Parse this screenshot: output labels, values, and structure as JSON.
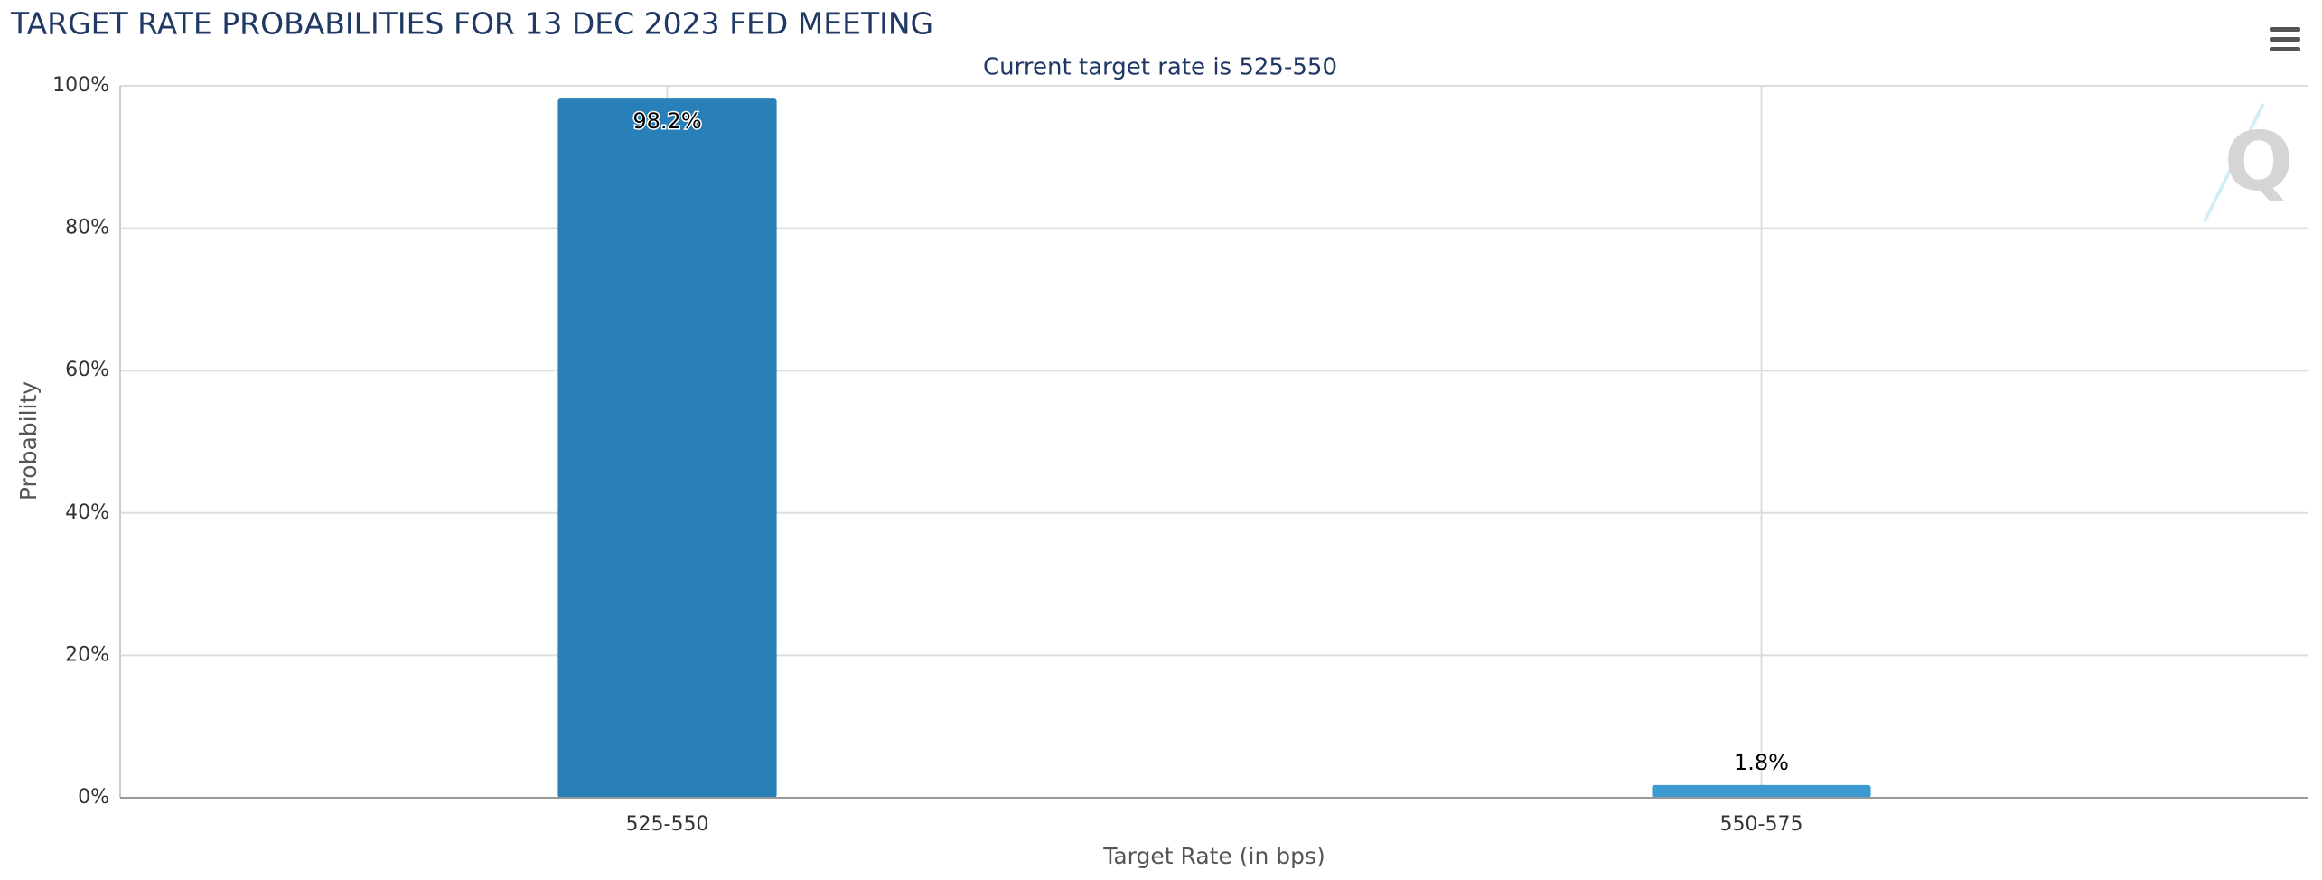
{
  "chart_data": {
    "type": "bar",
    "title": "TARGET RATE PROBABILITIES FOR 13 DEC 2023 FED MEETING",
    "subtitle": "Current target rate is 525-550",
    "x_label": "Target Rate (in bps)",
    "y_label": "Probability",
    "categories": [
      "525-550",
      "550-575"
    ],
    "values": [
      98.2,
      1.8
    ],
    "value_labels": [
      "98.2%",
      "1.8%"
    ],
    "colors": [
      "#2980b9",
      "#3d9ad1"
    ],
    "ylim": [
      0,
      100
    ],
    "yticks": [
      {
        "value": 0,
        "label": "0%"
      },
      {
        "value": 20,
        "label": "20%"
      },
      {
        "value": 40,
        "label": "40%"
      },
      {
        "value": 60,
        "label": "60%"
      },
      {
        "value": 80,
        "label": "80%"
      },
      {
        "value": 100,
        "label": "100%"
      }
    ],
    "grid": true
  }
}
